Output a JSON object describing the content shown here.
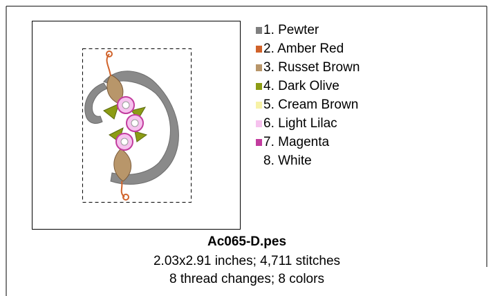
{
  "design": {
    "file_name": "Ac065-D.pes",
    "size_line": "2.03x2.91 inches; 4,711 stitches",
    "changes_line": "8 thread changes; 8 colors",
    "threads": [
      {
        "label": "1. Pewter",
        "color": "#7f7f7f"
      },
      {
        "label": "2. Amber Red",
        "color": "#d0622a"
      },
      {
        "label": "3. Russet Brown",
        "color": "#b8966a"
      },
      {
        "label": "4. Dark Olive",
        "color": "#8c9c14"
      },
      {
        "label": "5. Cream Brown",
        "color": "#f7f2a6"
      },
      {
        "label": "6. Light Lilac",
        "color": "#f6c2ee"
      },
      {
        "label": "7. Magenta",
        "color": "#c23c9e"
      },
      {
        "label": "8. White",
        "color": "#ffffff"
      }
    ]
  }
}
